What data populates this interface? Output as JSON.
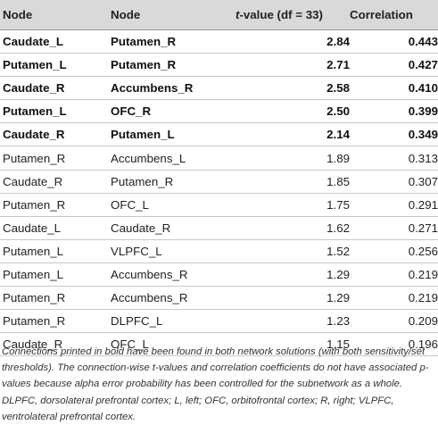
{
  "table": {
    "headers": {
      "node1": "Node",
      "node2": "Node",
      "tvalue_italic": "t",
      "tvalue_rest": "-value (df = 33)",
      "correlation": "Correlation"
    },
    "rows": [
      {
        "node1": "Caudate_L",
        "node2": "Putamen_R",
        "t": "2.84",
        "r": "0.443",
        "bold": true
      },
      {
        "node1": "Putamen_L",
        "node2": "Putamen_R",
        "t": "2.71",
        "r": "0.427",
        "bold": true
      },
      {
        "node1": "Caudate_R",
        "node2": "Accumbens_R",
        "t": "2.58",
        "r": "0.410",
        "bold": true
      },
      {
        "node1": "Putamen_L",
        "node2": "OFC_R",
        "t": "2.50",
        "r": "0.399",
        "bold": true
      },
      {
        "node1": "Caudate_R",
        "node2": "Putamen_L",
        "t": "2.14",
        "r": "0.349",
        "bold": true
      },
      {
        "node1": "Putamen_R",
        "node2": "Accumbens_L",
        "t": "1.89",
        "r": "0.313",
        "bold": false
      },
      {
        "node1": "Caudate_R",
        "node2": "Putamen_R",
        "t": "1.85",
        "r": "0.307",
        "bold": false
      },
      {
        "node1": "Putamen_R",
        "node2": "OFC_L",
        "t": "1.75",
        "r": "0.291",
        "bold": false
      },
      {
        "node1": "Caudate_L",
        "node2": "Caudate_R",
        "t": "1.62",
        "r": "0.271",
        "bold": false
      },
      {
        "node1": "Putamen_L",
        "node2": "VLPFC_L",
        "t": "1.52",
        "r": "0.256",
        "bold": false
      },
      {
        "node1": "Putamen_L",
        "node2": "Accumbens_R",
        "t": "1.29",
        "r": "0.219",
        "bold": false
      },
      {
        "node1": "Putamen_R",
        "node2": "Accumbens_R",
        "t": "1.29",
        "r": "0.219",
        "bold": false
      },
      {
        "node1": "Putamen_R",
        "node2": "DLPFC_L",
        "t": "1.23",
        "r": "0.209",
        "bold": false
      },
      {
        "node1": "Caudate_R",
        "node2": "OFC_L",
        "t": "1.15",
        "r": "0.196",
        "bold": false
      }
    ]
  },
  "footnote": "Connections printed in bold have been found in both network solutions (with both sensitivity/set thresholds). The connection-wise t-values and correlation coefficients do not have associated p-values because alpha error probability has been controlled for the subnetwork as a whole. DLPFC, dorsolateral prefrontal cortex; L, left; OFC, orbitofrontal cortex; R, right; VLPFC, ventrolateral prefrontal cortex."
}
